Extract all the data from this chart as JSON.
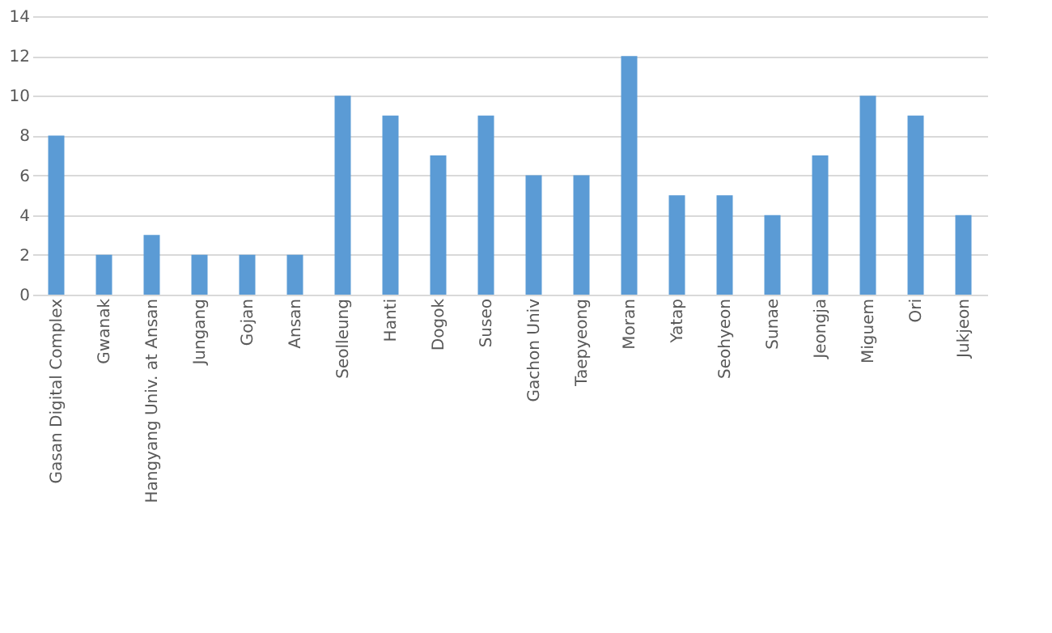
{
  "chart_data": {
    "type": "bar",
    "categories": [
      "Gasan Digital Complex",
      "Gwanak",
      "Hangyang Univ. at Ansan",
      "Jungang",
      "Gojan",
      "Ansan",
      "Seolleung",
      "Hanti",
      "Dogok",
      "Suseo",
      "Gachon Univ",
      "Taepyeong",
      "Moran",
      "Yatap",
      "Seohyeon",
      "Sunae",
      "Jeongja",
      "Miguem",
      "Ori",
      "Jukjeon"
    ],
    "values": [
      8,
      2,
      3,
      2,
      2,
      2,
      10,
      9,
      7,
      9,
      6,
      6,
      12,
      5,
      5,
      4,
      7,
      10,
      9,
      4
    ],
    "color": "#5b9bd5",
    "ylim": [
      0,
      14
    ],
    "yticks": [
      0,
      2,
      4,
      6,
      8,
      10,
      12,
      14
    ],
    "grid": "y"
  }
}
